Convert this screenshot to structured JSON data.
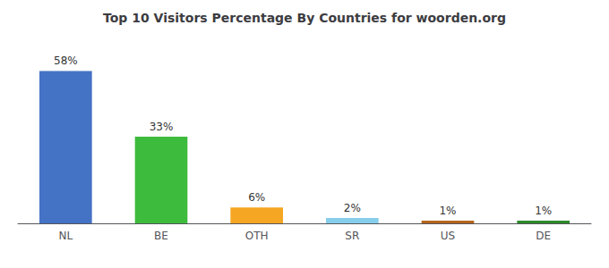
{
  "chart_data": {
    "type": "bar",
    "title": "Top 10 Visitors Percentage By Countries for woorden.org",
    "categories": [
      "NL",
      "BE",
      "OTH",
      "SR",
      "US",
      "DE"
    ],
    "values": [
      58,
      33,
      6,
      2,
      1,
      1
    ],
    "value_labels": [
      "58%",
      "33%",
      "6%",
      "2%",
      "1%",
      "1%"
    ],
    "colors": [
      "#4472c4",
      "#3dbb3d",
      "#f5a623",
      "#87ceeb",
      "#b5651d",
      "#2d8a2d"
    ],
    "ylim": [
      0,
      68
    ],
    "data_labels": true,
    "tick_labels": "x",
    "grid": false
  }
}
